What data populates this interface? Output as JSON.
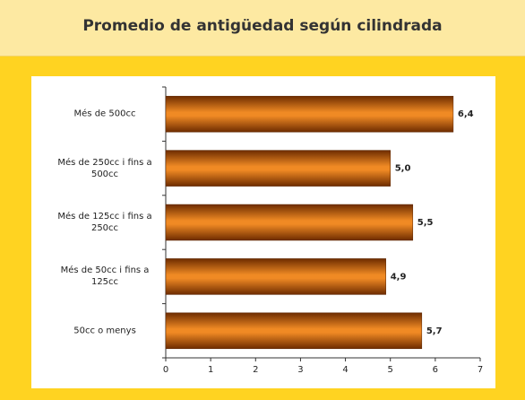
{
  "chart_data": {
    "type": "bar",
    "orientation": "horizontal",
    "title": "Promedio de antigüedad según cilindrada",
    "categories": [
      "Més de 500cc",
      "Més de 250cc i fins a 500cc",
      "Més de 125cc i fins a 250cc",
      "Més de 50cc i fins a 125cc",
      "50cc o menys"
    ],
    "values": [
      6.4,
      5.0,
      5.5,
      4.9,
      5.7
    ],
    "value_labels": [
      "6,4",
      "5,0",
      "5,5",
      "4,9",
      "5,7"
    ],
    "color": "#f08a24",
    "xlim": [
      0,
      7
    ],
    "xticks": [
      0,
      1,
      2,
      3,
      4,
      5,
      6,
      7
    ],
    "grid": false
  }
}
